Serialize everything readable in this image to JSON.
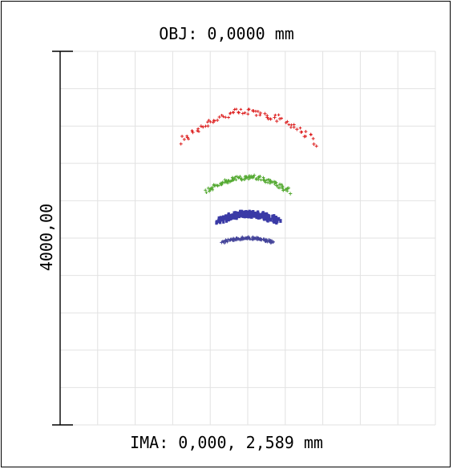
{
  "header": {
    "object_label": "OBJ: 0,0000 mm"
  },
  "footer": {
    "image_label": "IMA: 0,000, 2,589 mm"
  },
  "scale": {
    "label": "4000,00"
  },
  "chart_data": {
    "type": "scatter",
    "grid": true,
    "grid_divisions": 10,
    "xlim": [
      -2000,
      2000
    ],
    "ylim": [
      -2000,
      2000
    ],
    "series": [
      {
        "color": "#dd2222",
        "y_center": 1350,
        "half_width": 720,
        "sag": 38,
        "spread": 10,
        "count": 80,
        "markers": "cross"
      },
      {
        "color": "#55aa33",
        "y_center": 650,
        "half_width": 440,
        "sag": 18,
        "spread": 6,
        "count": 120,
        "markers": "cross"
      },
      {
        "color": "#3a3aa6",
        "y_center": 260,
        "half_width": 330,
        "sag": 10,
        "spread": 7,
        "count": 170,
        "markers": "dense"
      },
      {
        "color": "#44449a",
        "y_center": 0,
        "half_width": 270,
        "sag": 5,
        "spread": 3,
        "count": 110,
        "markers": "cross"
      }
    ]
  }
}
